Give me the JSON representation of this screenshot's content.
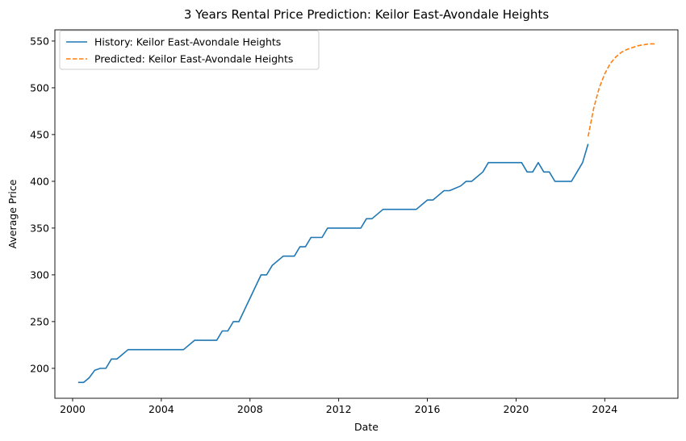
{
  "chart_data": {
    "type": "line",
    "title": "3 Years Rental Price Prediction: Keilor East-Avondale Heights",
    "xlabel": "Date",
    "ylabel": "Average Price",
    "xlim": [
      1999.2,
      2027.3
    ],
    "ylim": [
      168,
      562
    ],
    "xticks": [
      2000,
      2004,
      2008,
      2012,
      2016,
      2020,
      2024
    ],
    "yticks": [
      200,
      250,
      300,
      350,
      400,
      450,
      500,
      550
    ],
    "grid": false,
    "legend_position": "top-left",
    "colors": {
      "history": "#1f77b4",
      "predicted": "#ff7f0e"
    },
    "series": [
      {
        "name": "History: Keilor East-Avondale Heights",
        "style": "solid",
        "x": [
          2000.25,
          2000.5,
          2000.75,
          2001.0,
          2001.25,
          2001.5,
          2001.75,
          2002.0,
          2002.25,
          2002.5,
          2003.0,
          2003.5,
          2004.0,
          2004.5,
          2005.0,
          2005.5,
          2006.0,
          2006.5,
          2006.75,
          2007.0,
          2007.25,
          2007.5,
          2008.0,
          2008.5,
          2008.75,
          2009.0,
          2009.5,
          2010.0,
          2010.25,
          2010.5,
          2010.75,
          2011.0,
          2011.25,
          2011.5,
          2012.0,
          2012.5,
          2012.75,
          2013.0,
          2013.25,
          2013.5,
          2014.0,
          2014.5,
          2015.0,
          2015.5,
          2016.0,
          2016.25,
          2016.5,
          2016.75,
          2017.0,
          2017.5,
          2017.75,
          2018.0,
          2018.5,
          2018.75,
          2019.0,
          2019.5,
          2020.0,
          2020.25,
          2020.5,
          2020.75,
          2021.0,
          2021.25,
          2021.5,
          2021.75,
          2022.0,
          2022.5,
          2022.75,
          2023.0,
          2023.25
        ],
        "values": [
          185,
          185,
          190,
          198,
          200,
          200,
          210,
          210,
          215,
          220,
          220,
          220,
          220,
          220,
          220,
          230,
          230,
          230,
          240,
          240,
          250,
          250,
          275,
          300,
          300,
          310,
          320,
          320,
          330,
          330,
          340,
          340,
          340,
          350,
          350,
          350,
          350,
          350,
          360,
          360,
          370,
          370,
          370,
          370,
          380,
          380,
          385,
          390,
          390,
          395,
          400,
          400,
          410,
          420,
          420,
          420,
          420,
          420,
          410,
          410,
          420,
          410,
          410,
          400,
          400,
          400,
          410,
          420,
          440
        ]
      },
      {
        "name": "Predicted: Keilor East-Avondale Heights",
        "style": "dashed",
        "x": [
          2023.25,
          2023.5,
          2023.75,
          2024.0,
          2024.25,
          2024.5,
          2024.75,
          2025.0,
          2025.25,
          2025.5,
          2025.75,
          2026.0,
          2026.25
        ],
        "values": [
          448,
          478,
          500,
          515,
          526,
          533,
          538,
          541,
          543,
          545,
          546,
          547,
          547
        ]
      }
    ]
  }
}
